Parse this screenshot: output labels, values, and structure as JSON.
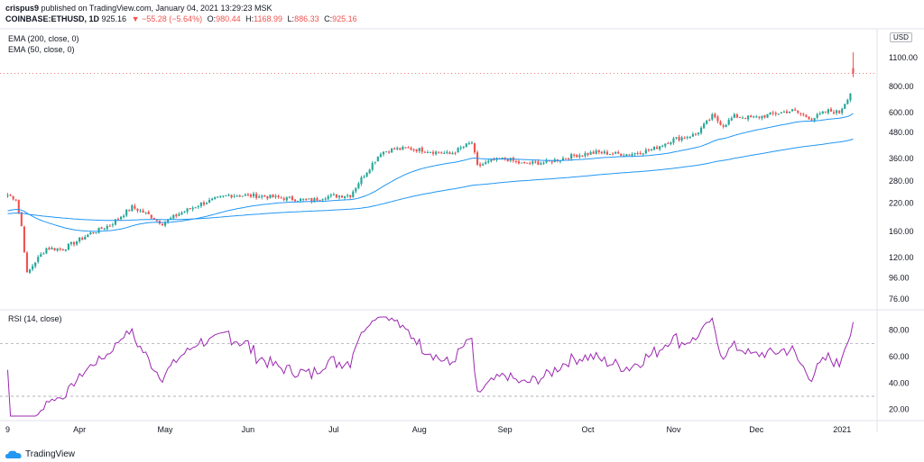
{
  "header": {
    "line1_user": "crispus9",
    "line1_rest": " published on TradingView.com, January 04, 2021 13:29:23 MSK",
    "symbol": "COINBASE:ETHUSD, 1D",
    "last": "925.16",
    "change_icon": "down-triangle-icon",
    "change": "−55.28 (−5.64%)",
    "o_label": "O:",
    "o_val": "980.44",
    "h_label": "H:",
    "h_val": "1168.99",
    "l_label": "L:",
    "l_val": "886.33",
    "c_label": "C:",
    "c_val": "925.16"
  },
  "indicators": {
    "ema200": "EMA (200, close, 0)",
    "ema50": "EMA (50, close, 0)",
    "rsi": "RSI (14, close)"
  },
  "currency": "USD",
  "branding": "TradingView",
  "colors": {
    "up": "#26a69a",
    "down": "#ef5350",
    "ema": "#2196f3",
    "rsi": "#9c27b0",
    "last_price_line": "#ef5350"
  },
  "chart_data": [
    {
      "type": "candlestick",
      "scale": "log",
      "y_ticks": [
        76,
        96,
        120,
        160,
        220,
        280,
        360,
        480,
        600,
        800,
        1100
      ],
      "x_tick_labels": [
        "9",
        "Apr",
        "May",
        "Jun",
        "Jul",
        "Aug",
        "Sep",
        "Oct",
        "Nov",
        "Dec",
        "2021"
      ],
      "ylim": [
        70,
        1400
      ],
      "price_anchors": [
        [
          0,
          240
        ],
        [
          3,
          230
        ],
        [
          5,
          170
        ],
        [
          7,
          100
        ],
        [
          10,
          115
        ],
        [
          14,
          133
        ],
        [
          20,
          132
        ],
        [
          30,
          157
        ],
        [
          37,
          172
        ],
        [
          45,
          210
        ],
        [
          50,
          196
        ],
        [
          56,
          175
        ],
        [
          62,
          195
        ],
        [
          70,
          218
        ],
        [
          80,
          240
        ],
        [
          90,
          238
        ],
        [
          100,
          232
        ],
        [
          110,
          226
        ],
        [
          115,
          236
        ],
        [
          124,
          240
        ],
        [
          127,
          276
        ],
        [
          135,
          385
        ],
        [
          140,
          400
        ],
        [
          145,
          402
        ],
        [
          150,
          396
        ],
        [
          160,
          378
        ],
        [
          168,
          430
        ],
        [
          170,
          330
        ],
        [
          175,
          350
        ],
        [
          180,
          360
        ],
        [
          186,
          340
        ],
        [
          195,
          345
        ],
        [
          205,
          372
        ],
        [
          213,
          385
        ],
        [
          225,
          377
        ],
        [
          233,
          397
        ],
        [
          241,
          445
        ],
        [
          249,
          470
        ],
        [
          255,
          575
        ],
        [
          259,
          520
        ],
        [
          263,
          575
        ],
        [
          270,
          565
        ],
        [
          277,
          590
        ],
        [
          284,
          612
        ],
        [
          291,
          560
        ],
        [
          297,
          610
        ],
        [
          301,
          600
        ],
        [
          305,
          745
        ],
        [
          306,
          980
        ]
      ],
      "last": {
        "open": 980.44,
        "high": 1168.99,
        "low": 886.33,
        "close": 925.16
      },
      "series": [
        {
          "name": "EMA (200, close, 0)",
          "type": "line",
          "color": "#2196f3"
        },
        {
          "name": "EMA (50, close, 0)",
          "type": "line",
          "color": "#2196f3"
        }
      ]
    },
    {
      "type": "line",
      "name": "RSI (14, close)",
      "y_ticks": [
        20,
        40,
        60,
        80
      ],
      "ylim": [
        15,
        90
      ],
      "guide_levels": [
        30,
        70
      ]
    }
  ]
}
